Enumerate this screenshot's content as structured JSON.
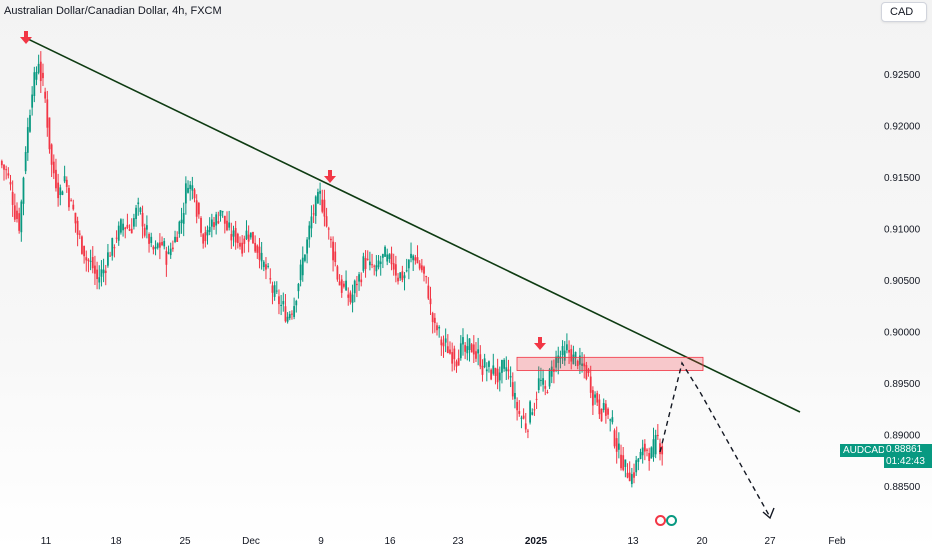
{
  "header": {
    "title": "Australian Dollar/Canadian Dollar, 4h, FXCM",
    "currency": "CAD"
  },
  "price_label": {
    "symbol": "AUDCAD",
    "price": "0.88861",
    "countdown": "01:42:43",
    "color": "#089981"
  },
  "colors": {
    "up": "#089981",
    "down": "#f23645",
    "trendline": "#0e3b12",
    "zone": "#f23645",
    "arrow": "#f23645"
  },
  "chart_data": {
    "type": "candlestick",
    "yticks": [
      "0.92500",
      "0.92000",
      "0.91500",
      "0.91000",
      "0.90500",
      "0.90000",
      "0.89500",
      "0.89000",
      "0.88500"
    ],
    "xticks": [
      {
        "label": "11",
        "bold": false
      },
      {
        "label": "18",
        "bold": false
      },
      {
        "label": "25",
        "bold": false
      },
      {
        "label": "Dec",
        "bold": false
      },
      {
        "label": "9",
        "bold": false
      },
      {
        "label": "16",
        "bold": false
      },
      {
        "label": "23",
        "bold": false
      },
      {
        "label": "2025",
        "bold": true
      },
      {
        "label": "13",
        "bold": false
      },
      {
        "label": "20",
        "bold": false
      },
      {
        "label": "27",
        "bold": false
      },
      {
        "label": "Feb",
        "bold": false
      }
    ],
    "ylim": [
      0.8825,
      0.9275
    ],
    "closes": [
      0.9155,
      0.913,
      0.9105,
      0.918,
      0.924,
      0.9265,
      0.9225,
      0.916,
      0.914,
      0.915,
      0.912,
      0.9095,
      0.908,
      0.9065,
      0.905,
      0.906,
      0.908,
      0.9095,
      0.9105,
      0.91,
      0.9115,
      0.911,
      0.909,
      0.9075,
      0.9085,
      0.907,
      0.909,
      0.911,
      0.915,
      0.914,
      0.9105,
      0.909,
      0.911,
      0.912,
      0.91,
      0.909,
      0.9085,
      0.9095,
      0.909,
      0.908,
      0.906,
      0.904,
      0.903,
      0.902,
      0.9025,
      0.905,
      0.908,
      0.911,
      0.9125,
      0.912,
      0.9085,
      0.9055,
      0.904,
      0.903,
      0.905,
      0.9065,
      0.906,
      0.9055,
      0.907,
      0.9065,
      0.906,
      0.9055,
      0.9065,
      0.9075,
      0.906,
      0.904,
      0.9,
      0.899,
      0.8985,
      0.898,
      0.898,
      0.8975,
      0.8985,
      0.8975,
      0.8965,
      0.896,
      0.895,
      0.8965,
      0.8945,
      0.892,
      0.891,
      0.893,
      0.895,
      0.894,
      0.896,
      0.8975,
      0.8975,
      0.898,
      0.8975,
      0.8965,
      0.895,
      0.8935,
      0.892,
      0.891,
      0.889,
      0.8875,
      0.8865,
      0.887,
      0.888,
      0.8885,
      0.889,
      0.8886
    ],
    "trendline": [
      {
        "x_label": "11",
        "y": 0.9265
      },
      {
        "x_label": "after 27",
        "y": 0.892
      }
    ],
    "resistance_zone": {
      "y_top": 0.8973,
      "y_bottom": 0.8964
    },
    "markers": [
      "arrow-down",
      "arrow-down",
      "arrow-down"
    ],
    "projection": [
      0.8888,
      0.897,
      0.884
    ]
  }
}
